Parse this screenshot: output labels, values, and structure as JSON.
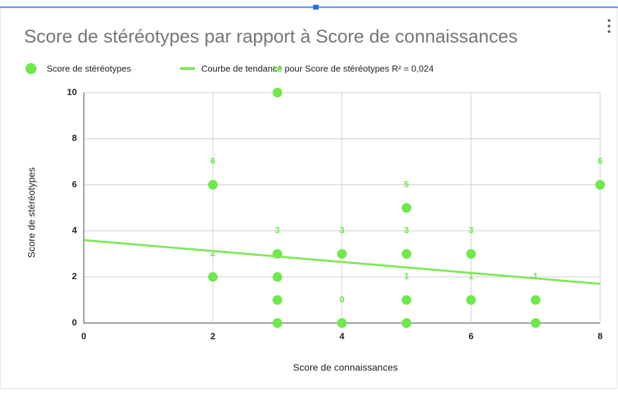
{
  "chart_data": {
    "type": "scatter",
    "title": "Score de stéréotypes par rapport à Score de connaissances",
    "x_label": "Score de connaissances",
    "y_label": "Score de stéréotypes",
    "series": [
      {
        "name": "Score de stéréotypes",
        "color": "#6ee84a",
        "x": [
          2,
          2,
          3,
          3,
          3,
          3,
          3,
          4,
          4,
          5,
          5,
          5,
          5,
          6,
          6,
          7,
          7,
          8
        ],
        "values": [
          6,
          2,
          10,
          3,
          2,
          1,
          0,
          3,
          0,
          5,
          3,
          1,
          0,
          3,
          1,
          1,
          0,
          6
        ]
      }
    ],
    "trendline": {
      "name": "Courbe de tendance pour Score de stéréotypes R² = 0,024",
      "color": "#7ee85a",
      "x": [
        0,
        8
      ],
      "values": [
        3.6,
        1.7
      ]
    },
    "xlim": [
      0,
      8
    ],
    "xticks": [
      0,
      2,
      4,
      6,
      8
    ],
    "ylim": [
      0,
      10
    ],
    "yticks": [
      0,
      2,
      4,
      6,
      8,
      10
    ],
    "grid": true
  }
}
